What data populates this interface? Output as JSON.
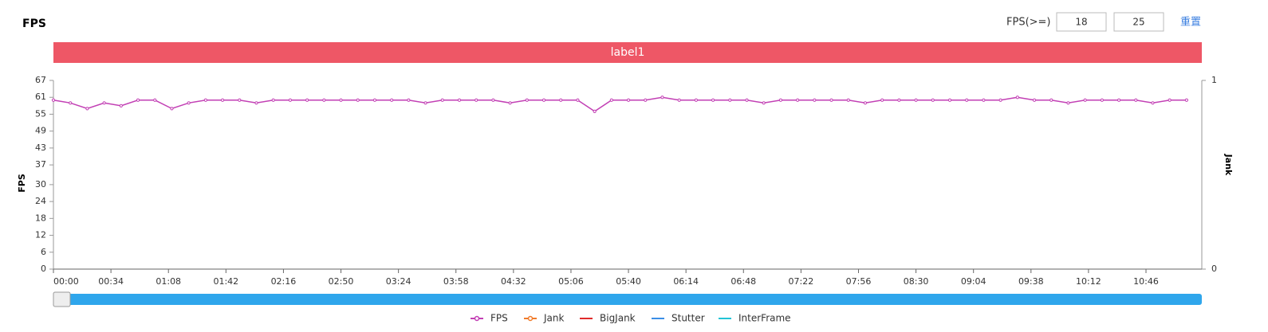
{
  "header": {
    "title": "FPS",
    "threshold_label": "FPS(>=)",
    "thresholds": [
      18,
      25
    ],
    "reset": "重置"
  },
  "chart_data": {
    "type": "line",
    "band_label": "label1",
    "ylabel": "FPS",
    "y2label": "Jank",
    "x": [
      0,
      10,
      20,
      30,
      40,
      50,
      60,
      70,
      80,
      90,
      100,
      110,
      120,
      130,
      140,
      150,
      160,
      170,
      180,
      190,
      200,
      210,
      220,
      230,
      240,
      250,
      260,
      270,
      280,
      290,
      300,
      310,
      320,
      330,
      340,
      350,
      360,
      370,
      380,
      390,
      400,
      410,
      420,
      430,
      440,
      450,
      460,
      470,
      480,
      490,
      500,
      510,
      520,
      530,
      540,
      550,
      560,
      570,
      580,
      590,
      600,
      610,
      620,
      630,
      640,
      650,
      660,
      670
    ],
    "xlim": [
      0,
      679
    ],
    "xticks": [
      {
        "value": 0,
        "label": "00:00"
      },
      {
        "value": 34,
        "label": "00:34"
      },
      {
        "value": 68,
        "label": "01:08"
      },
      {
        "value": 102,
        "label": "01:42"
      },
      {
        "value": 136,
        "label": "02:16"
      },
      {
        "value": 170,
        "label": "02:50"
      },
      {
        "value": 204,
        "label": "03:24"
      },
      {
        "value": 238,
        "label": "03:58"
      },
      {
        "value": 272,
        "label": "04:32"
      },
      {
        "value": 306,
        "label": "05:06"
      },
      {
        "value": 340,
        "label": "05:40"
      },
      {
        "value": 374,
        "label": "06:14"
      },
      {
        "value": 408,
        "label": "06:48"
      },
      {
        "value": 442,
        "label": "07:22"
      },
      {
        "value": 476,
        "label": "07:56"
      },
      {
        "value": 510,
        "label": "08:30"
      },
      {
        "value": 544,
        "label": "09:04"
      },
      {
        "value": 578,
        "label": "09:38"
      },
      {
        "value": 612,
        "label": "10:12"
      },
      {
        "value": 646,
        "label": "10:46"
      }
    ],
    "ylim": [
      0,
      67
    ],
    "yticks": [
      0,
      6,
      12,
      18,
      24,
      30,
      37,
      43,
      49,
      55,
      61,
      67
    ],
    "y2lim": [
      0,
      1
    ],
    "y2ticks": [
      0,
      1
    ],
    "series": [
      {
        "name": "FPS",
        "color": "#c23fb4",
        "values": [
          60,
          59,
          57,
          59,
          58,
          60,
          60,
          57,
          59,
          60,
          60,
          60,
          59,
          60,
          60,
          60,
          60,
          60,
          60,
          60,
          60,
          60,
          59,
          60,
          60,
          60,
          60,
          59,
          60,
          60,
          60,
          60,
          56,
          60,
          60,
          60,
          61,
          60,
          60,
          60,
          60,
          60,
          59,
          60,
          60,
          60,
          60,
          60,
          59,
          60,
          60,
          60,
          60,
          60,
          60,
          60,
          60,
          61,
          60,
          60,
          59,
          60,
          60,
          60,
          60,
          59,
          60,
          60
        ]
      },
      {
        "name": "Jank",
        "color": "#f07b2b"
      },
      {
        "name": "BigJank",
        "color": "#e02b2b"
      },
      {
        "name": "Stutter",
        "color": "#3a8ee6"
      },
      {
        "name": "InterFrame",
        "color": "#22c4d6"
      }
    ]
  }
}
